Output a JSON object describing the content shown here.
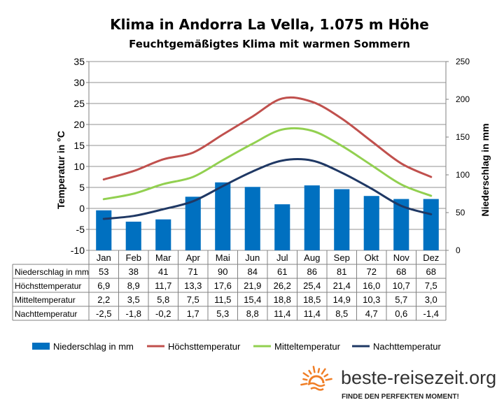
{
  "chart_data": {
    "type": "bar+line",
    "title": "Klima in Andorra La Vella, 1.075 m Höhe",
    "subtitle": "Feuchtgemäßigtes Klima mit warmen Sommern",
    "ylabel": "Temperatur in °C",
    "y2label": "Niederschlag in mm",
    "ylim": [
      -10,
      35
    ],
    "y2lim": [
      0,
      250
    ],
    "yticks": [
      "35",
      "30",
      "25",
      "20",
      "15",
      "10",
      "5",
      "0",
      "-5",
      "-10"
    ],
    "y2ticks": [
      "250",
      "200",
      "150",
      "100",
      "50",
      "0"
    ],
    "grid": true,
    "legend_position": "bottom",
    "categories": [
      "Jan",
      "Feb",
      "Mar",
      "Apr",
      "Mai",
      "Jun",
      "Jul",
      "Aug",
      "Sep",
      "Okt",
      "Nov",
      "Dez"
    ],
    "series": [
      {
        "name": "Niederschlag in mm",
        "type": "bar",
        "axis": "right",
        "color": "#0070C0",
        "values": [
          53,
          38,
          41,
          71,
          90,
          84,
          61,
          86,
          81,
          72,
          68,
          68
        ],
        "labels": [
          "53",
          "38",
          "41",
          "71",
          "90",
          "84",
          "61",
          "86",
          "81",
          "72",
          "68",
          "68"
        ]
      },
      {
        "name": "Höchsttemperatur",
        "type": "line",
        "axis": "left",
        "color": "#C0504D",
        "values": [
          6.9,
          8.9,
          11.7,
          13.3,
          17.6,
          21.9,
          26.2,
          25.4,
          21.4,
          16.0,
          10.7,
          7.5
        ],
        "labels": [
          "6,9",
          "8,9",
          "11,7",
          "13,3",
          "17,6",
          "21,9",
          "26,2",
          "25,4",
          "21,4",
          "16,0",
          "10,7",
          "7,5"
        ]
      },
      {
        "name": "Mitteltemperatur",
        "type": "line",
        "axis": "left",
        "color": "#92D050",
        "values": [
          2.2,
          3.5,
          5.8,
          7.5,
          11.5,
          15.4,
          18.8,
          18.5,
          14.9,
          10.3,
          5.7,
          3.0
        ],
        "labels": [
          "2,2",
          "3,5",
          "5,8",
          "7,5",
          "11,5",
          "15,4",
          "18,8",
          "18,5",
          "14,9",
          "10,3",
          "5,7",
          "3,0"
        ]
      },
      {
        "name": "Nachttemperatur",
        "type": "line",
        "axis": "left",
        "color": "#1F3864",
        "values": [
          -2.5,
          -1.8,
          -0.2,
          1.7,
          5.3,
          8.8,
          11.4,
          11.4,
          8.5,
          4.7,
          0.6,
          -1.4
        ],
        "labels": [
          "-2,5",
          "-1,8",
          "-0,2",
          "1,7",
          "5,3",
          "8,8",
          "11,4",
          "11,4",
          "8,5",
          "4,7",
          "0,6",
          "-1,4"
        ]
      }
    ]
  },
  "brand": {
    "name": "beste-reisezeit.org",
    "tagline": "FINDE DEN PERFEKTEN MOMENT!",
    "icon": "sun-logo-icon",
    "color": "#F07E26"
  }
}
